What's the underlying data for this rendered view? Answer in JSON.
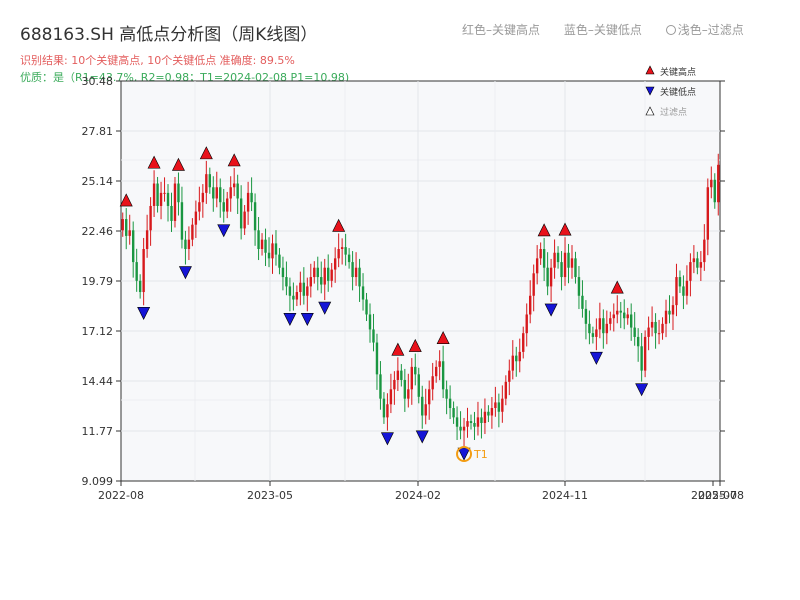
{
  "header": {
    "title": "688163.SH 高低点分析图（周K线图）",
    "result_text": "识别结果: 10个关键高点, 10个关键低点   准确度: 89.5%",
    "quality_text": "优质：是（R1=43.7%, R2=0.98；T1=2024-02-08 P1=10.98)"
  },
  "top_legend": {
    "red": "红色–关键高点",
    "blue": "蓝色–关键低点",
    "light": "浅色–过滤点"
  },
  "colors": {
    "up": "#d7191c",
    "down": "#1a9641",
    "high_marker": "#e8121b",
    "low_marker": "#1515d6",
    "t1_ring": "#f39c12",
    "axis": "#333333",
    "plot_bg": "#f7f8fa",
    "grid": "#e3e6ea"
  },
  "chart_data": {
    "type": "candlestick",
    "ylim": [
      9.099,
      30.48
    ],
    "y_ticks": [
      "30.48",
      "27.81",
      "25.14",
      "22.46",
      "19.79",
      "17.12",
      "14.44",
      "11.77",
      "9.099"
    ],
    "x_ticks": [
      "2022-08",
      "2023-05",
      "2024-02",
      "2024-11",
      "2025-07",
      "2025-08"
    ],
    "legend": {
      "high": "关键高点",
      "low": "关键低点",
      "filtered": "过滤点"
    },
    "t1_label": "T1",
    "closes": [
      23.1,
      22.2,
      22.5,
      20.8,
      19.8,
      19.2,
      21.5,
      22.5,
      23.8,
      25.0,
      23.8,
      24.5,
      24.5,
      23.8,
      23.0,
      25.0,
      24.0,
      22.0,
      21.5,
      22.0,
      22.8,
      23.5,
      24.0,
      24.5,
      25.5,
      24.8,
      24.2,
      24.8,
      24.0,
      23.5,
      24.2,
      24.8,
      25.0,
      24.2,
      22.6,
      23.5,
      24.5,
      24.0,
      22.5,
      21.5,
      22.0,
      21.3,
      21.0,
      21.8,
      21.2,
      20.5,
      20.0,
      19.5,
      19.0,
      18.8,
      19.2,
      19.7,
      19.0,
      19.5,
      20.0,
      20.5,
      20.0,
      19.6,
      20.5,
      19.8,
      20.4,
      21.0,
      21.5,
      21.6,
      21.2,
      20.8,
      20.0,
      20.5,
      19.5,
      18.8,
      18.0,
      17.2,
      16.5,
      14.8,
      13.5,
      12.5,
      13.2,
      14.0,
      14.5,
      15.0,
      14.5,
      13.5,
      14.0,
      15.2,
      14.8,
      13.6,
      12.6,
      13.2,
      14.0,
      14.7,
      15.2,
      15.5,
      14.0,
      13.5,
      13.0,
      12.5,
      12.0,
      11.8,
      12.0,
      12.3,
      12.2,
      12.0,
      12.5,
      12.2,
      12.8,
      12.6,
      13.0,
      13.3,
      12.8,
      13.5,
      14.4,
      15.0,
      15.8,
      15.5,
      16.0,
      17.0,
      18.0,
      19.0,
      20.2,
      21.0,
      21.5,
      20.5,
      19.5,
      20.5,
      21.3,
      20.8,
      20.0,
      21.3,
      20.5,
      21.0,
      20.0,
      19.0,
      18.3,
      17.5,
      17.0,
      16.8,
      17.2,
      17.8,
      17.0,
      17.5,
      17.8,
      18.0,
      18.2,
      18.1,
      17.8,
      18.0,
      17.3,
      16.8,
      16.3,
      15.0,
      16.8,
      17.3,
      17.6,
      17.0,
      17.0,
      17.5,
      18.2,
      18.0,
      18.5,
      20.0,
      19.5,
      19.0,
      19.8,
      20.8,
      21.0,
      20.5,
      20.8,
      22.0,
      24.8,
      25.2,
      24.0,
      26.0
    ]
  }
}
